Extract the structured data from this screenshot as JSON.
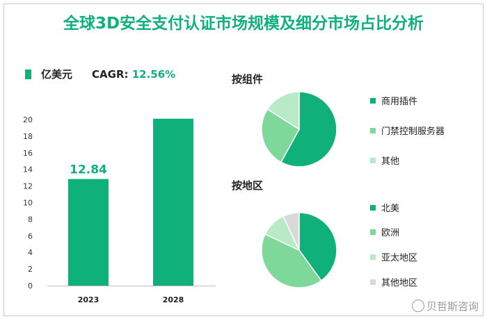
{
  "title": "全球3D安全支付认证市场规模及细分市场占比分析",
  "legend": {
    "unit": "亿美元",
    "cagr_label": "CAGR:",
    "cagr_value": "12.56%"
  },
  "colors": {
    "accent": "#10b07a"
  },
  "watermark": "贝哲斯咨询",
  "chart_data": [
    {
      "type": "bar",
      "categories": [
        "2023",
        "2028"
      ],
      "values": [
        12.84,
        20.1
      ],
      "data_labels": [
        "12.84",
        ""
      ],
      "yticks": [
        "0",
        "2",
        "4",
        "6",
        "8",
        "10",
        "12",
        "14",
        "16",
        "18",
        "20"
      ],
      "ylim": [
        0,
        20
      ],
      "color": "#10b07a"
    },
    {
      "type": "pie",
      "title": "按组件",
      "slices": [
        {
          "label": "商用插件",
          "value": 58,
          "color": "#10b07a"
        },
        {
          "label": "门禁控制服务器",
          "value": 26,
          "color": "#7dd89a"
        },
        {
          "label": "其他",
          "value": 16,
          "color": "#b9eac8"
        }
      ]
    },
    {
      "type": "pie",
      "title": "按地区",
      "slices": [
        {
          "label": "北美",
          "value": 40,
          "color": "#10b07a"
        },
        {
          "label": "欧洲",
          "value": 42,
          "color": "#7dd89a"
        },
        {
          "label": "亚太地区",
          "value": 11,
          "color": "#b9eac8"
        },
        {
          "label": "其他地区",
          "value": 7,
          "color": "#d9d9d9"
        }
      ]
    }
  ]
}
